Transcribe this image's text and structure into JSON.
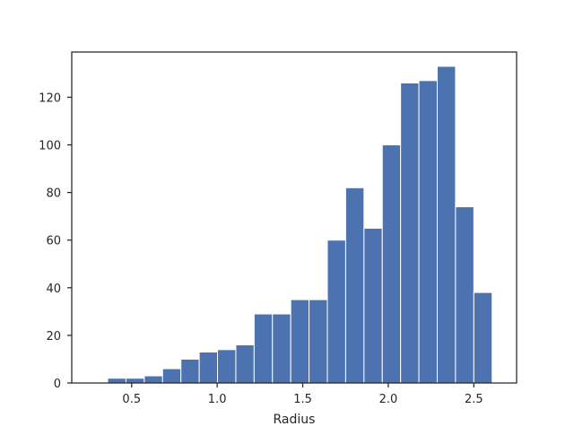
{
  "chart_data": {
    "type": "bar",
    "subtype": "histogram",
    "title": "",
    "xlabel": "Radius",
    "ylabel": "",
    "xlim": [
      0.15,
      2.75
    ],
    "ylim": [
      0,
      139
    ],
    "xticks": [
      0.5,
      1.0,
      1.5,
      2.0,
      2.5
    ],
    "xtick_labels": [
      "0.5",
      "1.0",
      "1.5",
      "2.0",
      "2.5"
    ],
    "yticks": [
      0,
      20,
      40,
      60,
      80,
      100,
      120
    ],
    "ytick_labels": [
      "0",
      "20",
      "40",
      "60",
      "80",
      "100",
      "120"
    ],
    "grid": false,
    "bar_color": "#4c72b0",
    "bins": [
      {
        "x0": 0.36,
        "x1": 0.467,
        "count": 2
      },
      {
        "x0": 0.467,
        "x1": 0.574,
        "count": 2
      },
      {
        "x0": 0.574,
        "x1": 0.681,
        "count": 3
      },
      {
        "x0": 0.681,
        "x1": 0.788,
        "count": 6
      },
      {
        "x0": 0.788,
        "x1": 0.895,
        "count": 10
      },
      {
        "x0": 0.895,
        "x1": 1.002,
        "count": 13
      },
      {
        "x0": 1.002,
        "x1": 1.109,
        "count": 14
      },
      {
        "x0": 1.109,
        "x1": 1.216,
        "count": 16
      },
      {
        "x0": 1.216,
        "x1": 1.323,
        "count": 29
      },
      {
        "x0": 1.323,
        "x1": 1.43,
        "count": 29
      },
      {
        "x0": 1.43,
        "x1": 1.537,
        "count": 35
      },
      {
        "x0": 1.537,
        "x1": 1.644,
        "count": 35
      },
      {
        "x0": 1.644,
        "x1": 1.751,
        "count": 60
      },
      {
        "x0": 1.751,
        "x1": 1.858,
        "count": 82
      },
      {
        "x0": 1.858,
        "x1": 1.965,
        "count": 65
      },
      {
        "x0": 1.965,
        "x1": 2.072,
        "count": 100
      },
      {
        "x0": 2.072,
        "x1": 2.179,
        "count": 126
      },
      {
        "x0": 2.179,
        "x1": 2.286,
        "count": 127
      },
      {
        "x0": 2.286,
        "x1": 2.393,
        "count": 133
      },
      {
        "x0": 2.393,
        "x1": 2.5,
        "count": 74
      },
      {
        "x0": 2.5,
        "x1": 2.607,
        "count": 38
      }
    ]
  }
}
